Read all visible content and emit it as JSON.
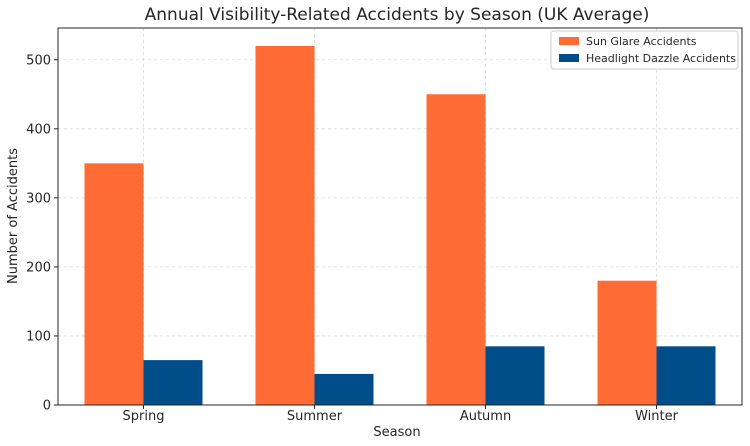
{
  "chart_data": {
    "type": "bar",
    "title": "Annual Visibility-Related Accidents by Season (UK Average)",
    "xlabel": "Season",
    "ylabel": "Number of Accidents",
    "categories": [
      "Spring",
      "Summer",
      "Autumn",
      "Winter"
    ],
    "series": [
      {
        "name": "Sun Glare Accidents",
        "color": "#ff6b35",
        "values": [
          350,
          520,
          450,
          180
        ]
      },
      {
        "name": "Headlight Dazzle Accidents",
        "color": "#004e89",
        "values": [
          65,
          45,
          85,
          85
        ]
      }
    ],
    "ylim": [
      0,
      546
    ],
    "yticks": [
      0,
      100,
      200,
      300,
      400,
      500
    ],
    "grid": true,
    "legend_position": "top-right"
  }
}
